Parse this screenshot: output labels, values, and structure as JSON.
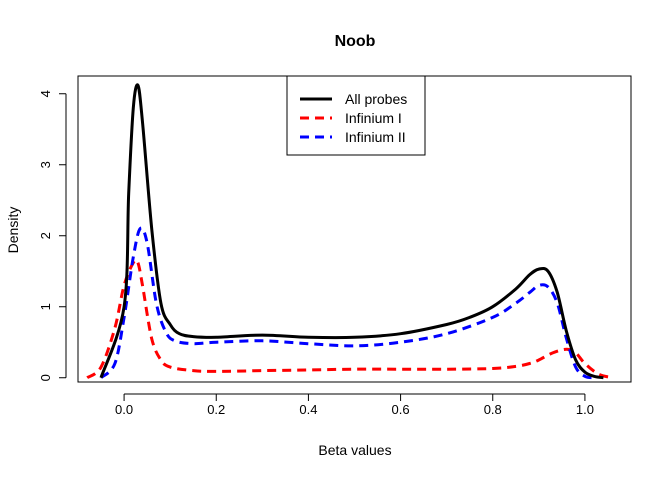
{
  "chart_data": {
    "type": "line",
    "title": "Noob",
    "xlabel": "Beta values",
    "ylabel": "Density",
    "xlim": [
      -0.1,
      1.1
    ],
    "ylim": [
      -0.06,
      4.25
    ],
    "xticks": [
      "0.0",
      "0.2",
      "0.4",
      "0.6",
      "0.8",
      "1.0"
    ],
    "yticks": [
      "0",
      "1",
      "2",
      "3",
      "4"
    ],
    "grid": false,
    "legend_position": "top-center",
    "series": [
      {
        "name": "All probes",
        "color": "#000000",
        "dash": "solid",
        "x": [
          -0.05,
          0.0,
          0.01,
          0.02,
          0.03,
          0.04,
          0.06,
          0.08,
          0.1,
          0.12,
          0.15,
          0.2,
          0.3,
          0.4,
          0.5,
          0.6,
          0.7,
          0.75,
          0.8,
          0.85,
          0.88,
          0.9,
          0.92,
          0.94,
          0.96,
          0.98,
          1.0,
          1.02,
          1.04
        ],
        "y": [
          0.0,
          1.0,
          2.6,
          3.8,
          4.12,
          3.6,
          2.1,
          1.05,
          0.75,
          0.62,
          0.58,
          0.57,
          0.6,
          0.57,
          0.57,
          0.62,
          0.75,
          0.85,
          1.0,
          1.25,
          1.45,
          1.53,
          1.5,
          1.2,
          0.65,
          0.25,
          0.08,
          0.02,
          0.0
        ]
      },
      {
        "name": "Infinium I",
        "color": "#ff0000",
        "dash": "dashed",
        "x": [
          -0.08,
          -0.05,
          -0.02,
          0.0,
          0.02,
          0.03,
          0.04,
          0.06,
          0.08,
          0.1,
          0.15,
          0.2,
          0.3,
          0.4,
          0.5,
          0.6,
          0.7,
          0.8,
          0.85,
          0.88,
          0.9,
          0.93,
          0.96,
          0.98,
          1.0,
          1.03,
          1.06
        ],
        "y": [
          0.0,
          0.15,
          0.7,
          1.3,
          1.62,
          1.62,
          1.3,
          0.55,
          0.25,
          0.15,
          0.1,
          0.09,
          0.1,
          0.11,
          0.12,
          0.12,
          0.12,
          0.13,
          0.16,
          0.2,
          0.25,
          0.35,
          0.4,
          0.35,
          0.2,
          0.05,
          0.0
        ]
      },
      {
        "name": "Infinium II",
        "color": "#0000ff",
        "dash": "dashed",
        "x": [
          -0.05,
          -0.02,
          0.0,
          0.02,
          0.035,
          0.05,
          0.07,
          0.09,
          0.11,
          0.15,
          0.2,
          0.3,
          0.4,
          0.5,
          0.6,
          0.7,
          0.8,
          0.85,
          0.88,
          0.9,
          0.92,
          0.94,
          0.96,
          0.98,
          1.0,
          1.02
        ],
        "y": [
          0.0,
          0.2,
          0.85,
          1.7,
          2.1,
          1.9,
          1.05,
          0.65,
          0.52,
          0.48,
          0.5,
          0.52,
          0.48,
          0.45,
          0.5,
          0.62,
          0.85,
          1.05,
          1.2,
          1.3,
          1.28,
          1.05,
          0.55,
          0.15,
          0.02,
          0.0
        ]
      }
    ]
  }
}
